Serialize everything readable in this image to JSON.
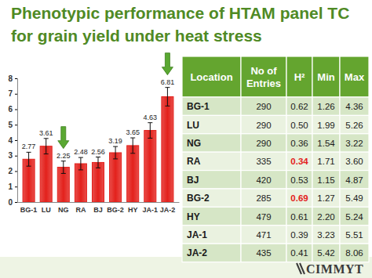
{
  "chart_data": {
    "type": "bar",
    "title": "Phenotypic performance of HTAM panel TC for grain yield under heat stress",
    "categories": [
      "BG-1",
      "LU",
      "NG",
      "RA",
      "BJ",
      "BG-2",
      "HY",
      "JA-1",
      "JA-2"
    ],
    "values": [
      2.77,
      3.61,
      2.25,
      2.48,
      2.56,
      3.19,
      3.65,
      4.63,
      6.81
    ],
    "errors": [
      0.45,
      0.5,
      0.4,
      0.4,
      0.35,
      0.4,
      0.5,
      0.5,
      0.6
    ],
    "color": "#e3211c",
    "ylim": [
      0,
      8
    ],
    "yticks": [
      0,
      1,
      2,
      3,
      4,
      5,
      6,
      7,
      8
    ],
    "grid": false,
    "data_labels": true
  },
  "table": {
    "columns": [
      "Location",
      "No of Entries",
      "H²",
      "Min",
      "Max"
    ],
    "rows": [
      [
        "BG-1",
        "290",
        "0.62",
        "1.26",
        "4.36"
      ],
      [
        "LU",
        "290",
        "0.50",
        "1.99",
        "5.26"
      ],
      [
        "NG",
        "290",
        "0.36",
        "1.54",
        "3.22"
      ],
      [
        "RA",
        "335",
        "0.34",
        "1.71",
        "3.60"
      ],
      [
        "BJ",
        "420",
        "0.53",
        "1.15",
        "4.87"
      ],
      [
        "BG-2",
        "285",
        "0.69",
        "1.27",
        "5.49"
      ],
      [
        "HY",
        "479",
        "0.61",
        "2.20",
        "5.24"
      ],
      [
        "JA-1",
        "471",
        "0.39",
        "3.23",
        "5.51"
      ],
      [
        "JA-2",
        "435",
        "0.41",
        "5.42",
        "8.06"
      ]
    ]
  },
  "logo": "CIMMYT"
}
